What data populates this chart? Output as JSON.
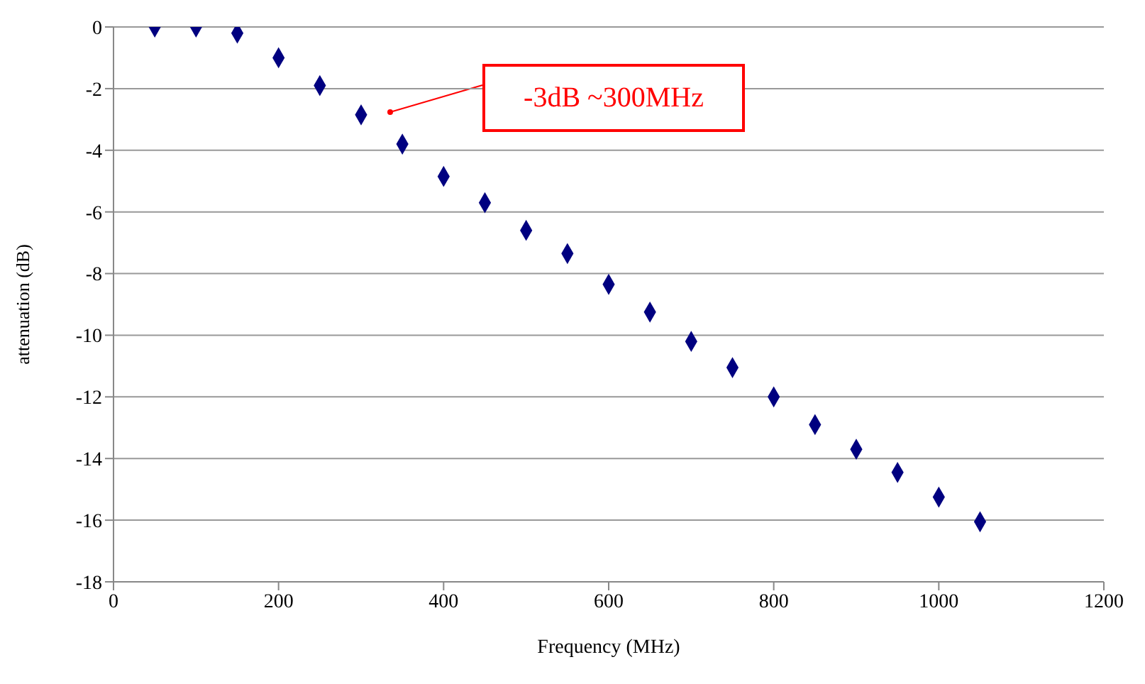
{
  "chart_data": {
    "type": "scatter",
    "xlabel": "Frequency (MHz)",
    "ylabel": "attenuation (dB)",
    "x": [
      50,
      100,
      150,
      200,
      250,
      300,
      350,
      400,
      450,
      500,
      550,
      600,
      650,
      700,
      750,
      800,
      850,
      900,
      950,
      1000,
      1050
    ],
    "series": [
      {
        "color": "#000080",
        "values": [
          0,
          0,
          -0.2,
          -1.0,
          -1.9,
          -2.85,
          -3.8,
          -4.85,
          -5.7,
          -6.6,
          -7.35,
          -8.35,
          -9.25,
          -10.2,
          -11.05,
          -12.0,
          -12.9,
          -13.7,
          -14.45,
          -15.25,
          -16.05
        ]
      }
    ],
    "xlim": [
      0,
      1200
    ],
    "xticks": [
      0,
      200,
      400,
      600,
      800,
      1000,
      1200
    ],
    "ylim": [
      -18,
      0
    ],
    "yticks": [
      0,
      -2,
      -4,
      -6,
      -8,
      -10,
      -12,
      -14,
      -16,
      -18
    ],
    "grid": "y",
    "marker": "diamond",
    "legend": false,
    "annotations": [
      "-3dB ~300MHz"
    ]
  }
}
